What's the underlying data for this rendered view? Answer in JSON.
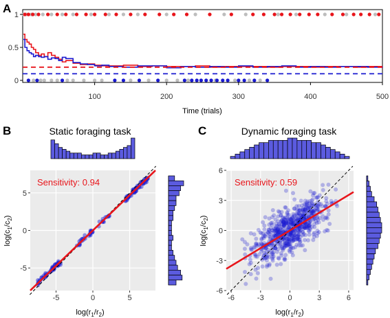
{
  "panels": {
    "a": "A",
    "b": "B",
    "c": "C"
  },
  "colors": {
    "red": "#e8151b",
    "blue": "#1a1ad0",
    "grey": "#bdbdbd",
    "hist": "#5b5bdf",
    "panel_bg": "#ebebeb"
  },
  "chart_data": [
    {
      "type": "line",
      "panel": "A",
      "xlabel": "Time (trials)",
      "ylabel": "",
      "xlim": [
        0,
        500
      ],
      "ylim": [
        0,
        1
      ],
      "x_ticks": [
        100,
        200,
        300,
        400,
        500
      ],
      "y_ticks": [
        0,
        0.5,
        1
      ],
      "y_tick_labels": [
        "0",
        "0.5",
        "1"
      ],
      "series": [
        {
          "color": "red",
          "x": [
            1,
            3,
            6,
            9,
            12,
            15,
            18,
            22,
            26,
            30,
            35,
            40,
            45,
            50,
            55,
            60,
            70,
            80,
            90,
            100,
            110,
            120,
            140,
            160,
            180,
            200,
            220,
            240,
            260,
            280,
            300,
            320,
            340,
            360,
            380,
            400,
            420,
            440,
            460,
            480,
            500
          ],
          "y": [
            0.7,
            0.62,
            0.58,
            0.55,
            0.5,
            0.47,
            0.42,
            0.38,
            0.4,
            0.36,
            0.42,
            0.38,
            0.35,
            0.32,
            0.28,
            0.3,
            0.26,
            0.24,
            0.25,
            0.23,
            0.22,
            0.22,
            0.23,
            0.21,
            0.22,
            0.21,
            0.21,
            0.22,
            0.2,
            0.21,
            0.21,
            0.21,
            0.2,
            0.21,
            0.21,
            0.2,
            0.21,
            0.21,
            0.2,
            0.21,
            0.21
          ]
        },
        {
          "color": "blue",
          "x": [
            1,
            3,
            6,
            9,
            12,
            15,
            18,
            22,
            26,
            30,
            35,
            40,
            45,
            50,
            55,
            60,
            70,
            80,
            90,
            100,
            110,
            120,
            140,
            160,
            180,
            200,
            220,
            240,
            260,
            280,
            300,
            320,
            340,
            360,
            380,
            400,
            420,
            440,
            460,
            480,
            500
          ],
          "y": [
            0.62,
            0.5,
            0.45,
            0.42,
            0.4,
            0.36,
            0.38,
            0.36,
            0.35,
            0.36,
            0.32,
            0.34,
            0.33,
            0.3,
            0.35,
            0.33,
            0.27,
            0.25,
            0.24,
            0.22,
            0.23,
            0.21,
            0.2,
            0.22,
            0.22,
            0.19,
            0.21,
            0.2,
            0.21,
            0.2,
            0.22,
            0.2,
            0.21,
            0.22,
            0.2,
            0.21,
            0.2,
            0.21,
            0.21,
            0.2,
            0.21
          ]
        },
        {
          "color": "red",
          "dashed": true,
          "x": [
            0,
            500
          ],
          "y": [
            0.2,
            0.2
          ]
        },
        {
          "color": "blue",
          "dashed": true,
          "x": [
            0,
            500
          ],
          "y": [
            0.1,
            0.1
          ]
        }
      ],
      "choices_top_red": [
        3,
        8,
        14,
        22,
        35,
        48,
        60,
        75,
        88,
        100,
        115,
        130,
        150,
        170,
        190,
        210,
        228,
        260,
        290,
        320,
        335,
        350,
        360,
        372,
        385,
        398,
        410,
        430,
        445,
        460,
        470,
        482,
        495
      ],
      "choices_top_grey": [
        1,
        5,
        12,
        18,
        28,
        40,
        55,
        70,
        95,
        120,
        140,
        160,
        200,
        240,
        280,
        310,
        355,
        380,
        420,
        450,
        490
      ],
      "choices_bottom_blue": [
        8,
        20,
        55,
        128,
        140,
        162,
        188,
        225,
        235,
        242,
        248,
        255,
        262,
        270,
        278,
        285,
        300,
        308,
        322,
        340
      ],
      "choices_bottom_grey": [
        15,
        25,
        30,
        40,
        48,
        62,
        70,
        85,
        100,
        110,
        150,
        175,
        200,
        215,
        230,
        268,
        295,
        315,
        330
      ]
    },
    {
      "type": "scatter",
      "panel": "B",
      "title": "Static foraging task",
      "xlabel": "log(r1/r2)",
      "ylabel": "log(c1/c2)",
      "xlim": [
        -8.5,
        8.5
      ],
      "ylim": [
        -8,
        8
      ],
      "x_ticks": [
        -5,
        0,
        5
      ],
      "y_ticks": [
        -5,
        0,
        5
      ],
      "annotation": "Sensitivity: 0.94",
      "fit": {
        "slope": 0.94,
        "intercept": 0
      },
      "identity_line": true,
      "points_x_range": [
        -7.5,
        7.5
      ],
      "top_hist": [
        10,
        8,
        6,
        5,
        4,
        3,
        3,
        3,
        2,
        2,
        2,
        3,
        3,
        2,
        2,
        3,
        3,
        4,
        5,
        6,
        7,
        11
      ],
      "right_hist": [
        4,
        10,
        8,
        7,
        5,
        5,
        4,
        3,
        3,
        2,
        2,
        2,
        3,
        2,
        2,
        3,
        4,
        5,
        6,
        8,
        9,
        5
      ]
    },
    {
      "type": "scatter",
      "panel": "C",
      "title": "Dynamic foraging task",
      "xlabel": "log(r1/r2)",
      "ylabel": "log(c1/c2)",
      "xlim": [
        -6.5,
        6.5
      ],
      "ylim": [
        -6,
        6
      ],
      "x_ticks": [
        -6,
        -3,
        0,
        3,
        6
      ],
      "y_ticks": [
        -6,
        -3,
        0,
        3,
        6
      ],
      "annotation": "Sensitivity: 0.59",
      "fit": {
        "slope": 0.59,
        "intercept": 0
      },
      "identity_line": true,
      "points_x_range": [
        -5,
        5
      ],
      "top_hist": [
        1,
        2,
        3,
        4,
        5,
        6,
        7,
        7,
        8,
        8,
        8,
        8,
        9,
        9,
        8,
        8,
        8,
        7,
        7,
        6,
        5,
        4,
        3,
        2,
        1
      ],
      "right_hist": [
        1,
        2,
        3,
        4,
        6,
        8,
        9,
        10,
        11,
        12,
        12,
        11,
        10,
        9,
        7,
        6,
        5,
        4,
        3,
        2,
        1
      ]
    }
  ],
  "labels": {
    "a_xlabel": "Time (trials)",
    "b_title": "Static foraging task",
    "c_title": "Dynamic foraging task",
    "b_sens": "Sensitivity: 0.94",
    "c_sens": "Sensitivity: 0.59",
    "ylabel_log": "log(c",
    "xlabel_log": "log(r",
    "sub1": "1",
    "sub2": "2"
  }
}
